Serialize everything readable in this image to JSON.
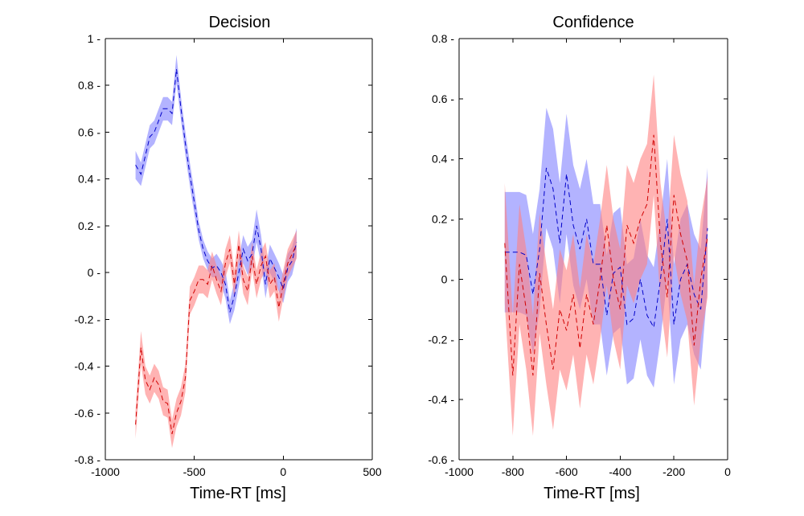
{
  "colors": {
    "blue_line": "#0000c8",
    "red_line": "#d00000",
    "blue_band": "#8080ff",
    "red_band": "#ff8080",
    "band_opacity": 0.6
  },
  "chart_data": [
    {
      "type": "line",
      "title": "Decision",
      "xlabel": "Time-RT [ms]",
      "ylabel": "",
      "xlim": [
        -1000,
        500
      ],
      "ylim": [
        -0.8,
        1
      ],
      "xticks": [
        -1000,
        -500,
        0,
        500
      ],
      "xtick_labels": [
        "-1000",
        "-500",
        "0",
        "500"
      ],
      "yticks": [
        -0.8,
        -0.6,
        -0.4,
        -0.2,
        0,
        0.2,
        0.4,
        0.6,
        0.8,
        1
      ],
      "ytick_labels": [
        "-0.8",
        "-0.6",
        "-0.4",
        "-0.2",
        "0",
        "0.2",
        "0.4",
        "0.6",
        "0.8",
        "1"
      ],
      "grid": false,
      "legend": "none",
      "x": [
        -830,
        -800,
        -775,
        -750,
        -725,
        -700,
        -675,
        -650,
        -625,
        -600,
        -575,
        -550,
        -525,
        -500,
        -475,
        -450,
        -425,
        -400,
        -375,
        -350,
        -325,
        -300,
        -275,
        -250,
        -225,
        -200,
        -175,
        -150,
        -125,
        -100,
        -75,
        -50,
        -25,
        0,
        25,
        50,
        75
      ],
      "series": [
        {
          "color": "blue",
          "values": [
            0.46,
            0.42,
            0.5,
            0.58,
            0.6,
            0.65,
            0.7,
            0.7,
            0.68,
            0.87,
            0.7,
            0.55,
            0.42,
            0.3,
            0.18,
            0.1,
            0.05,
            0.02,
            0.03,
            0.0,
            -0.05,
            -0.17,
            -0.1,
            0.0,
            0.1,
            0.05,
            0.08,
            0.2,
            0.1,
            -0.05,
            0.06,
            0.02,
            -0.02,
            -0.07,
            0.02,
            0.05,
            0.13
          ],
          "band_half_width": [
            0.06,
            0.05,
            0.05,
            0.05,
            0.05,
            0.05,
            0.05,
            0.05,
            0.05,
            0.06,
            0.05,
            0.05,
            0.05,
            0.05,
            0.04,
            0.04,
            0.04,
            0.04,
            0.05,
            0.05,
            0.06,
            0.05,
            0.06,
            0.06,
            0.06,
            0.06,
            0.06,
            0.07,
            0.06,
            0.06,
            0.06,
            0.06,
            0.06,
            0.06,
            0.06,
            0.06,
            0.06
          ]
        },
        {
          "color": "red",
          "values": [
            -0.65,
            -0.32,
            -0.46,
            -0.5,
            -0.45,
            -0.48,
            -0.55,
            -0.56,
            -0.69,
            -0.6,
            -0.55,
            -0.45,
            -0.12,
            -0.08,
            -0.03,
            -0.03,
            -0.05,
            0.03,
            -0.03,
            -0.08,
            0.04,
            0.1,
            -0.05,
            0.12,
            -0.03,
            -0.08,
            0.07,
            -0.05,
            0.03,
            0.07,
            -0.05,
            -0.02,
            -0.15,
            -0.05,
            0.04,
            0.08,
            0.12
          ],
          "band_half_width": [
            0.06,
            0.07,
            0.06,
            0.06,
            0.06,
            0.06,
            0.06,
            0.06,
            0.06,
            0.06,
            0.06,
            0.06,
            0.06,
            0.06,
            0.06,
            0.06,
            0.06,
            0.06,
            0.06,
            0.06,
            0.06,
            0.06,
            0.06,
            0.06,
            0.06,
            0.06,
            0.06,
            0.06,
            0.06,
            0.06,
            0.06,
            0.06,
            0.06,
            0.06,
            0.06,
            0.06,
            0.06
          ]
        }
      ]
    },
    {
      "type": "line",
      "title": "Confidence",
      "xlabel": "Time-RT [ms]",
      "ylabel": "",
      "xlim": [
        -1000,
        0
      ],
      "ylim": [
        -0.6,
        0.8
      ],
      "xticks": [
        -1000,
        -800,
        -600,
        -400,
        -200,
        0
      ],
      "xtick_labels": [
        "-1000",
        "-800",
        "-600",
        "-400",
        "-200",
        "0"
      ],
      "yticks": [
        -0.6,
        -0.4,
        -0.2,
        0,
        0.2,
        0.4,
        0.6,
        0.8
      ],
      "ytick_labels": [
        "-0.6",
        "-0.4",
        "-0.2",
        "0",
        "0.2",
        "0.4",
        "0.6",
        "0.8"
      ],
      "grid": false,
      "legend": "none",
      "x": [
        -830,
        -800,
        -775,
        -750,
        -725,
        -700,
        -675,
        -650,
        -625,
        -600,
        -575,
        -550,
        -525,
        -500,
        -475,
        -450,
        -425,
        -400,
        -375,
        -350,
        -325,
        -300,
        -275,
        -250,
        -225,
        -200,
        -175,
        -150,
        -125,
        -100,
        -75
      ],
      "series": [
        {
          "color": "blue",
          "values": [
            0.09,
            0.09,
            0.09,
            0.08,
            -0.05,
            0.1,
            0.37,
            0.3,
            0.12,
            0.35,
            0.18,
            0.1,
            0.2,
            0.05,
            0.05,
            -0.12,
            0.02,
            0.04,
            -0.15,
            -0.13,
            0.0,
            -0.12,
            -0.16,
            0.0,
            0.2,
            -0.15,
            0.0,
            0.05,
            -0.05,
            -0.1,
            0.17
          ],
          "band_half_width": [
            0.2,
            0.2,
            0.2,
            0.2,
            0.2,
            0.2,
            0.2,
            0.2,
            0.2,
            0.2,
            0.2,
            0.2,
            0.2,
            0.2,
            0.2,
            0.2,
            0.2,
            0.2,
            0.2,
            0.2,
            0.2,
            0.2,
            0.2,
            0.2,
            0.2,
            0.2,
            0.2,
            0.2,
            0.2,
            0.2,
            0.2
          ]
        },
        {
          "color": "red",
          "values": [
            0.12,
            -0.32,
            0.05,
            -0.1,
            -0.32,
            0.02,
            -0.15,
            -0.3,
            -0.1,
            -0.17,
            -0.05,
            -0.23,
            -0.05,
            -0.15,
            0.0,
            0.18,
            0.0,
            -0.1,
            0.18,
            0.12,
            0.2,
            0.25,
            0.48,
            0.12,
            -0.06,
            0.28,
            0.15,
            0.06,
            -0.22,
            0.0,
            0.14
          ],
          "band_half_width": [
            0.2,
            0.2,
            0.2,
            0.2,
            0.2,
            0.2,
            0.2,
            0.2,
            0.2,
            0.2,
            0.2,
            0.2,
            0.2,
            0.2,
            0.2,
            0.2,
            0.2,
            0.2,
            0.2,
            0.2,
            0.2,
            0.2,
            0.2,
            0.2,
            0.2,
            0.2,
            0.2,
            0.2,
            0.2,
            0.2,
            0.2
          ]
        }
      ]
    }
  ]
}
